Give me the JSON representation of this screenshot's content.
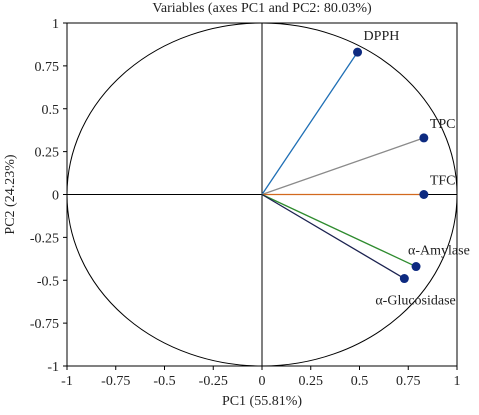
{
  "chart_data": {
    "type": "scatter",
    "title": "Variables (axes PC1 and PC2: 80.03%)",
    "xlabel": "PC1 (55.81%)",
    "ylabel": "PC2 (24.23%)",
    "xlim": [
      -1,
      1
    ],
    "ylim": [
      -1,
      1
    ],
    "x_ticks": [
      "-1",
      "-0.75",
      "-0.5",
      "-0.25",
      "0",
      "0.25",
      "0.5",
      "0.75",
      "1"
    ],
    "y_ticks": [
      "1",
      "0.75",
      "0.5",
      "0.25",
      "0",
      "-0.25",
      "-0.5",
      "-0.75",
      "-1"
    ],
    "grid": false,
    "correlation_circle": true,
    "marker_color": "#0d2a80",
    "points": [
      {
        "label": "DPPH",
        "x": 0.49,
        "y": 0.83,
        "vector_color": "#1f6fb5"
      },
      {
        "label": "TPC",
        "x": 0.83,
        "y": 0.33,
        "vector_color": "#8a8a8a"
      },
      {
        "label": "TFC",
        "x": 0.83,
        "y": 0.0,
        "vector_color": "#d2691e"
      },
      {
        "label": "α-Amylase",
        "x": 0.79,
        "y": -0.42,
        "vector_color": "#2e8b2e"
      },
      {
        "label": "α-Glucosidase",
        "x": 0.73,
        "y": -0.49,
        "vector_color": "#1b2250"
      }
    ]
  }
}
